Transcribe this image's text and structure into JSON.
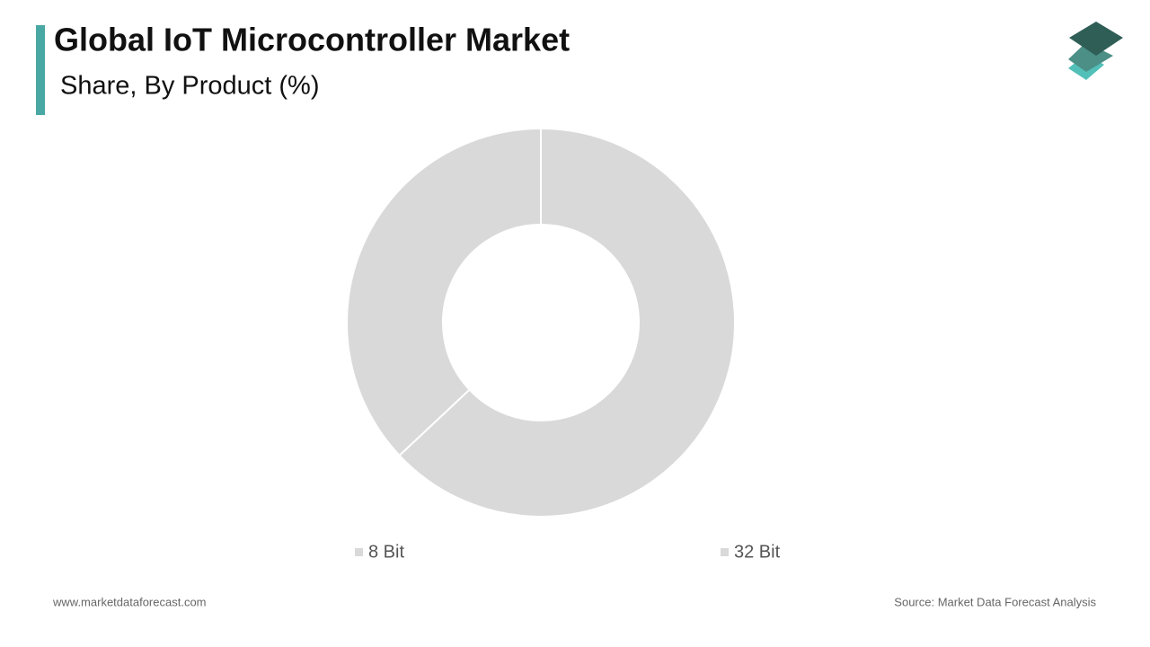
{
  "chart_data": {
    "type": "donut",
    "title": "Global IoT Microcontroller Market",
    "subtitle": "Share, By Product  (%)",
    "categories": [
      "8 Bit",
      "32 Bit"
    ],
    "values": [
      63,
      37
    ],
    "colors": [
      "#d9d9d9",
      "#d9d9d9"
    ]
  },
  "footer": {
    "website": "www.marketdataforecast.com",
    "source": "Source: Market Data Forecast Analysis"
  }
}
